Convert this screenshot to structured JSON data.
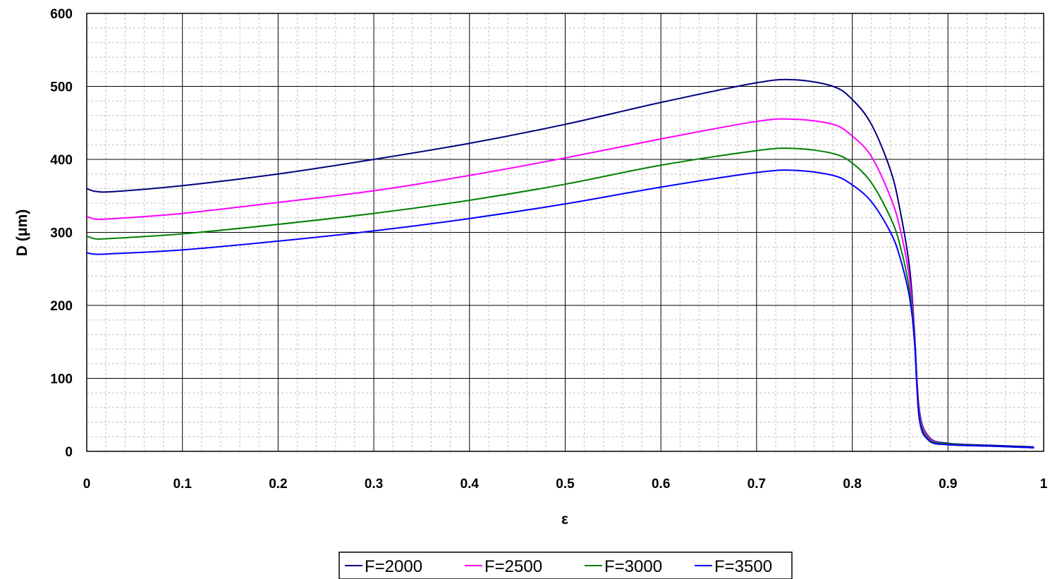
{
  "chart_data": {
    "type": "line",
    "xlabel": "ε",
    "ylabel": "D (μm)",
    "xlim": [
      0,
      1
    ],
    "ylim": [
      0,
      600
    ],
    "x_ticks": [
      "0",
      "0.1",
      "0.2",
      "0.3",
      "0.4",
      "0.5",
      "0.6",
      "0.7",
      "0.8",
      "0.9",
      "1"
    ],
    "y_ticks": [
      "0",
      "100",
      "200",
      "300",
      "400",
      "500",
      "600"
    ],
    "grid": true,
    "legend_position": "bottom",
    "x": [
      0,
      0.01,
      0.03,
      0.1,
      0.2,
      0.3,
      0.4,
      0.5,
      0.6,
      0.7,
      0.74,
      0.78,
      0.8,
      0.82,
      0.84,
      0.85,
      0.86,
      0.865,
      0.87,
      0.88,
      0.9,
      0.95,
      0.99
    ],
    "series": [
      {
        "name": "F=2000",
        "color": "#000080",
        "values": [
          360,
          356,
          356,
          364,
          380,
          400,
          422,
          448,
          478,
          505,
          509,
          500,
          482,
          448,
          385,
          330,
          250,
          165,
          58,
          20,
          11,
          8,
          6
        ]
      },
      {
        "name": "F=2500",
        "color": "#ff00ff",
        "values": [
          322,
          318,
          319,
          326,
          341,
          357,
          378,
          402,
          428,
          452,
          455,
          448,
          432,
          404,
          348,
          305,
          235,
          160,
          55,
          19,
          10,
          7,
          5
        ]
      },
      {
        "name": "F=3000",
        "color": "#008000",
        "values": [
          295,
          291,
          292,
          298,
          311,
          326,
          344,
          366,
          392,
          412,
          415,
          408,
          395,
          368,
          320,
          282,
          220,
          155,
          50,
          17,
          10,
          7,
          5
        ]
      },
      {
        "name": "F=3500",
        "color": "#0000ff",
        "values": [
          272,
          270,
          271,
          276,
          288,
          302,
          319,
          339,
          362,
          382,
          385,
          378,
          365,
          342,
          300,
          265,
          210,
          150,
          45,
          15,
          9,
          7,
          5
        ]
      }
    ]
  }
}
